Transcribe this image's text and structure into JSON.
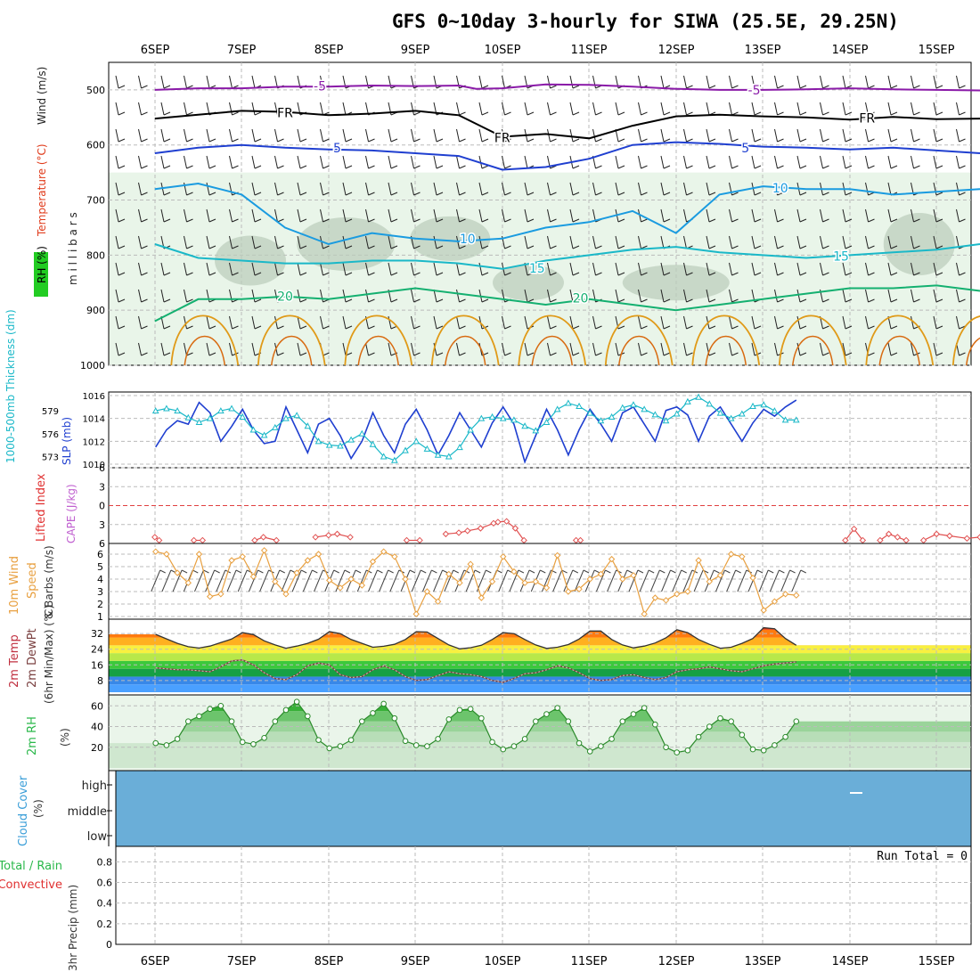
{
  "chart_data": {
    "type": "meteogram",
    "title": "GFS 0~10day 3-hourly for SIWA (25.5E, 29.25N)",
    "x_day_labels": [
      "6SEP",
      "7SEP",
      "8SEP",
      "9SEP",
      "10SEP",
      "11SEP",
      "12SEP",
      "13SEP",
      "14SEP",
      "15SEP"
    ],
    "colors": {
      "purple": "#8a1aa8",
      "blue_dark": "#1f3fd0",
      "blue_mid": "#1a9be0",
      "teal": "#1ab8c8",
      "green": "#14b070",
      "orange": "#e09a18",
      "precip_bg": "#6fb0d8",
      "rh_green": "#2ab84a"
    },
    "panels": [
      {
        "id": "upper_air",
        "labels": {
          "rh": "RH (%)",
          "temperature": "Temperature (°C)",
          "wind": "Wind (m/s)",
          "pressure": "m i l l i b a r s"
        },
        "y_ticks": [
          500,
          600,
          700,
          800,
          900,
          1000
        ],
        "ylim": [
          1000,
          450
        ],
        "isotherm_labels": [
          {
            "text": "-5",
            "x": 1.9,
            "p": 493
          },
          {
            "text": "-5",
            "x": 6.9,
            "p": 500
          },
          {
            "text": "FR",
            "x": 1.5,
            "p": 541
          },
          {
            "text": "FR",
            "x": 4.0,
            "p": 587
          },
          {
            "text": "FR",
            "x": 8.2,
            "p": 551
          },
          {
            "text": "5",
            "x": 2.1,
            "p": 605
          },
          {
            "text": "5",
            "x": 6.8,
            "p": 605
          },
          {
            "text": "10",
            "x": 3.6,
            "p": 770
          },
          {
            "text": "10",
            "x": 7.2,
            "p": 678
          },
          {
            "text": "15",
            "x": 4.4,
            "p": 824
          },
          {
            "text": "15",
            "x": 7.9,
            "p": 802
          },
          {
            "text": "20",
            "x": 1.5,
            "p": 875
          },
          {
            "text": "20",
            "x": 4.9,
            "p": 878
          }
        ],
        "isotherms": [
          {
            "label": "-5",
            "color": "#8a1aa8",
            "x": [
              0,
              0.5,
              1,
              1.5,
              2,
              2.5,
              3,
              3.5,
              3.7,
              4,
              4.5,
              5,
              5.5,
              6,
              6.5,
              7,
              7.5,
              8,
              8.5,
              9,
              9.5
            ],
            "p": [
              500,
              497,
              497,
              494,
              494,
              492,
              493,
              492,
              498,
              497,
              490,
              491,
              494,
              498,
              500,
              500,
              499,
              497,
              499,
              500,
              501
            ]
          },
          {
            "label": "FR",
            "color": "#000000",
            "x": [
              0,
              0.5,
              1,
              1.5,
              2,
              2.5,
              3,
              3.5,
              4,
              4.5,
              5,
              5.5,
              6,
              6.5,
              7,
              7.5,
              8,
              8.5,
              9,
              9.5
            ],
            "p": [
              552,
              545,
              538,
              540,
              546,
              543,
              538,
              546,
              585,
              580,
              588,
              565,
              548,
              545,
              548,
              550,
              554,
              549,
              553,
              552
            ]
          },
          {
            "label": "5",
            "color": "#1f3fd0",
            "x": [
              0,
              0.5,
              1,
              1.5,
              2,
              2.5,
              3,
              3.5,
              4,
              4.5,
              5,
              5.5,
              6,
              6.5,
              7,
              7.5,
              8,
              8.5,
              9,
              9.5
            ],
            "p": [
              615,
              605,
              600,
              605,
              608,
              610,
              615,
              620,
              645,
              640,
              625,
              600,
              595,
              598,
              603,
              605,
              608,
              605,
              610,
              615
            ]
          },
          {
            "label": "10",
            "color": "#1a9be0",
            "x": [
              0,
              0.5,
              1,
              1.5,
              2,
              2.5,
              3,
              3.5,
              4,
              4.5,
              5,
              5.5,
              6,
              6.5,
              7,
              7.5,
              8,
              8.5,
              9,
              9.5
            ],
            "p": [
              680,
              670,
              690,
              750,
              780,
              760,
              770,
              775,
              770,
              750,
              740,
              720,
              760,
              690,
              675,
              680,
              680,
              690,
              685,
              680
            ]
          },
          {
            "label": "15",
            "color": "#1ab8c8",
            "x": [
              0,
              0.5,
              1,
              1.5,
              2,
              2.5,
              3,
              3.5,
              4,
              4.5,
              5,
              5.5,
              6,
              6.5,
              7,
              7.5,
              8,
              8.5,
              9,
              9.5
            ],
            "p": [
              780,
              805,
              810,
              815,
              815,
              810,
              810,
              815,
              825,
              810,
              800,
              790,
              785,
              795,
              800,
              805,
              800,
              795,
              790,
              780
            ]
          },
          {
            "label": "20",
            "color": "#14b070",
            "x": [
              0,
              0.5,
              1,
              1.5,
              2,
              2.5,
              3,
              3.5,
              4,
              4.5,
              5,
              5.5,
              6,
              6.5,
              7,
              7.5,
              8,
              8.5,
              9,
              9.5
            ],
            "p": [
              920,
              880,
              880,
              875,
              880,
              870,
              860,
              870,
              880,
              890,
              880,
              890,
              900,
              890,
              880,
              870,
              860,
              860,
              855,
              865
            ]
          }
        ]
      },
      {
        "id": "slp_thickness",
        "labels": {
          "thickness": "1000-500mb Thickness (dm)",
          "slp": "SLP (mb)"
        },
        "left_ticks": [
          573,
          576,
          579
        ],
        "right_ticks": [
          1010,
          1012,
          1014,
          1016
        ],
        "slp_mb": [
          1011.5,
          1013.0,
          1013.8,
          1013.5,
          1015.4,
          1014.5,
          1012.0,
          1013.3,
          1014.8,
          1013.0,
          1011.8,
          1012.0,
          1015.0,
          1013.0,
          1011.0,
          1013.5,
          1014.0,
          1012.5,
          1010.5,
          1012.0,
          1014.5,
          1012.5,
          1011.0,
          1013.5,
          1014.8,
          1013.0,
          1010.8,
          1012.5,
          1014.5,
          1013.0,
          1011.5,
          1013.6,
          1015.0,
          1013.5,
          1010.2,
          1012.5,
          1014.8,
          1013.0,
          1010.8,
          1013.0,
          1014.8,
          1013.5,
          1012.0,
          1014.5,
          1015.0,
          1013.5,
          1012.0,
          1014.7,
          1015.0,
          1014.3,
          1012.0,
          1014.2,
          1015.0,
          1013.5,
          1012.0,
          1013.6,
          1014.8,
          1014.2,
          1015.0,
          1015.6
        ],
        "thickness_dm": [
          579.0,
          579.3,
          579.0,
          578.1,
          577.5,
          578.0,
          579.0,
          579.3,
          578.2,
          576.5,
          575.8,
          576.8,
          578.0,
          578.4,
          577.0,
          575.0,
          574.5,
          574.4,
          575.2,
          576.0,
          574.6,
          573.0,
          572.5,
          573.8,
          575.0,
          574.0,
          573.2,
          573.0,
          574.2,
          576.5,
          578.0,
          578.2,
          578.0,
          577.8,
          577.0,
          576.4,
          577.5,
          579.2,
          580.0,
          579.6,
          578.7,
          577.7,
          578.2,
          579.4,
          579.8,
          579.2,
          578.5,
          577.7,
          578.6,
          580.2,
          580.8,
          579.9,
          578.7,
          578.0,
          578.6,
          579.6,
          579.8,
          579.0,
          577.8,
          577.8
        ]
      },
      {
        "id": "stability",
        "labels": {
          "lifted_index": "Lifted Index",
          "cape": "CAPE (J/kg)"
        },
        "y_ticks": [
          -6,
          -3,
          0,
          3,
          6
        ],
        "lifted_index_segments": [
          {
            "x": [
              0.0,
              0.05
            ],
            "li": [
              5.0,
              5.5
            ]
          },
          {
            "x": [
              0.45,
              0.55
            ],
            "li": [
              5.5,
              5.5
            ]
          },
          {
            "x": [
              1.15,
              1.25,
              1.4
            ],
            "li": [
              5.5,
              5.0,
              5.5
            ]
          },
          {
            "x": [
              1.85,
              2.0,
              2.1,
              2.25
            ],
            "li": [
              5.0,
              4.7,
              4.5,
              5.0
            ]
          },
          {
            "x": [
              2.9,
              3.05
            ],
            "li": [
              5.5,
              5.5
            ]
          },
          {
            "x": [
              3.35,
              3.5,
              3.6,
              3.75,
              3.9,
              3.95,
              4.05,
              4.15,
              4.25
            ],
            "li": [
              4.5,
              4.3,
              4.0,
              3.6,
              2.8,
              2.6,
              2.5,
              3.6,
              5.5
            ]
          },
          {
            "x": [
              4.85,
              4.9
            ],
            "li": [
              5.5,
              5.5
            ]
          },
          {
            "x": [
              7.95,
              8.05,
              8.15
            ],
            "li": [
              5.5,
              3.7,
              5.5
            ]
          },
          {
            "x": [
              8.35,
              8.45,
              8.55,
              8.65
            ],
            "li": [
              5.5,
              4.5,
              5.0,
              5.5
            ]
          },
          {
            "x": [
              8.85,
              9.0,
              9.15,
              9.35,
              9.5,
              9.6,
              9.8,
              9.9,
              10.1
            ],
            "li": [
              5.5,
              4.5,
              4.8,
              5.2,
              5.0,
              4.8,
              5.0,
              4.8,
              4.0
            ]
          }
        ]
      },
      {
        "id": "wind10m",
        "labels": {
          "line1": "10m Wind",
          "line2": "Speed",
          "line3": "& Barbs (m/s)"
        },
        "y_ticks": [
          1,
          2,
          3,
          4,
          5,
          6
        ],
        "speed_ms": [
          6.2,
          6.0,
          4.5,
          3.7,
          6.0,
          2.6,
          2.8,
          5.5,
          5.8,
          4.2,
          6.3,
          3.8,
          2.8,
          4.5,
          5.5,
          6.0,
          3.9,
          3.3,
          4.0,
          3.5,
          5.4,
          6.2,
          5.8,
          4.0,
          1.2,
          3.0,
          2.2,
          4.4,
          3.7,
          5.2,
          2.5,
          3.8,
          5.8,
          4.6,
          3.7,
          3.8,
          3.3,
          5.9,
          3.0,
          3.2,
          4.0,
          4.4,
          5.6,
          4.0,
          4.3,
          1.2,
          2.5,
          2.3,
          2.8,
          3.0,
          5.5,
          3.8,
          4.3,
          6.0,
          5.8,
          4.1,
          1.5,
          2.2,
          2.8,
          2.7
        ]
      },
      {
        "id": "temp2m",
        "labels": {
          "line1": "2m Temp",
          "line2": "2m DewPt",
          "line3": "(6hr Min/Max) (°C)"
        },
        "y_ticks": [
          8,
          16,
          24,
          32
        ],
        "temp_c": [
          31.6,
          29.3,
          27.0,
          25.3,
          24.6,
          25.6,
          27.4,
          29.2,
          32.5,
          31.5,
          28.3,
          26.2,
          24.5,
          25.6,
          27.0,
          29.1,
          33.0,
          32.0,
          29.0,
          27.0,
          25.0,
          25.5,
          26.5,
          29.0,
          33.0,
          32.8,
          29.5,
          26.2,
          24.2,
          24.8,
          26.0,
          29.0,
          32.5,
          32.0,
          29.0,
          26.2,
          24.4,
          25.0,
          26.4,
          29.2,
          33.3,
          33.3,
          29.0,
          26.2,
          24.7,
          25.6,
          27.2,
          29.8,
          34.0,
          32.5,
          29.0,
          26.5,
          24.5,
          25.0,
          27.0,
          29.5,
          35.0,
          34.5,
          29.5,
          26.0
        ],
        "dewpt_c": [
          14.5,
          14.0,
          13.5,
          13.5,
          13.0,
          12.5,
          15.0,
          18.0,
          18.5,
          16.0,
          12.0,
          9.0,
          8.5,
          11.0,
          15.5,
          17.0,
          16.0,
          11.0,
          9.5,
          10.0,
          13.5,
          15.5,
          13.5,
          10.0,
          8.0,
          8.5,
          10.5,
          12.5,
          11.5,
          11.0,
          10.0,
          8.0,
          7.0,
          9.0,
          11.5,
          12.0,
          13.5,
          15.5,
          14.5,
          12.0,
          9.0,
          8.0,
          8.5,
          10.5,
          11.0,
          9.5,
          8.5,
          9.5,
          12.5,
          13.5,
          14.0,
          15.0,
          14.0,
          13.0,
          12.5,
          14.0,
          15.5,
          16.5,
          17.0,
          17.5
        ]
      },
      {
        "id": "rh2m",
        "labels": {
          "line1": "2m RH",
          "line2": "(%)"
        },
        "y_ticks": [
          20,
          40,
          60
        ],
        "rh_pct": [
          24,
          22,
          28,
          45,
          50,
          57,
          60,
          45,
          25,
          23,
          29,
          45,
          56,
          64,
          50,
          27,
          19,
          21,
          27,
          45,
          53,
          62,
          48,
          26,
          22,
          21,
          28,
          47,
          56,
          57,
          48,
          25,
          18,
          21,
          28,
          45,
          52,
          58,
          45,
          24,
          16,
          21,
          28,
          45,
          52,
          58,
          42,
          20,
          15,
          17,
          30,
          40,
          48,
          45,
          32,
          18,
          17,
          22,
          30,
          45
        ]
      },
      {
        "id": "cloud",
        "labels": {
          "line1": "Cloud Cover",
          "line2": "(%)"
        },
        "levels": [
          "high",
          "middle",
          "low"
        ],
        "fill_color": "#6aaed8"
      },
      {
        "id": "precip",
        "labels": {
          "line1": "Total / Rain",
          "line2": "Convective",
          "line3": "3hr Precip (mm)"
        },
        "y_ticks": [
          "0",
          "0.2",
          "0.4",
          "0.6",
          "0.8"
        ],
        "run_total": "Run Total = 0",
        "values_mm": []
      }
    ]
  }
}
